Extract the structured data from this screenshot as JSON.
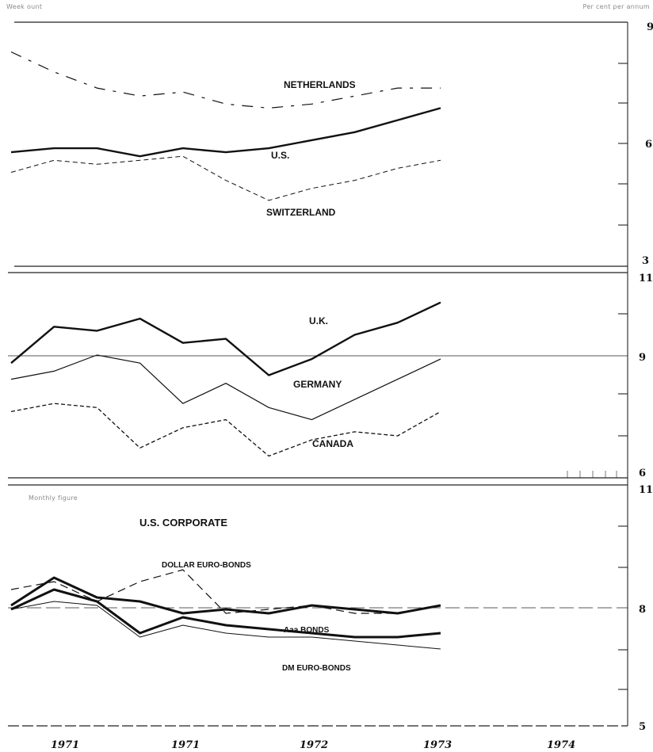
{
  "header": {
    "left_note": "Week   ount",
    "right_note": "Per cent per annum",
    "panel3_note": "Monthly figure"
  },
  "chart_data": [
    {
      "type": "line",
      "title": "",
      "ylim": [
        3,
        9
      ],
      "yticks": [
        "9",
        "6",
        "3"
      ],
      "x": [
        1970.9,
        1971.1,
        1971.3,
        1971.5,
        1971.7,
        1971.9,
        1972.1,
        1972.3,
        1972.5,
        1972.7,
        1972.9
      ],
      "series": [
        {
          "name": "NETHERLANDS",
          "values": [
            8.3,
            7.8,
            7.4,
            7.2,
            7.3,
            7.0,
            6.9,
            7.0,
            7.2,
            7.4,
            7.4
          ]
        },
        {
          "name": "U.S.",
          "values": [
            5.8,
            5.9,
            5.9,
            5.7,
            5.9,
            5.8,
            5.9,
            6.1,
            6.3,
            6.6,
            6.9
          ]
        },
        {
          "name": "SWITZERLAND",
          "values": [
            5.3,
            5.6,
            5.5,
            5.6,
            5.7,
            5.1,
            4.6,
            4.9,
            5.1,
            5.4,
            5.6
          ]
        }
      ]
    },
    {
      "type": "line",
      "title": "",
      "ylim": [
        6,
        11
      ],
      "yticks": [
        "11",
        "9",
        "6"
      ],
      "x": [
        1970.9,
        1971.1,
        1971.3,
        1971.5,
        1971.7,
        1971.9,
        1972.1,
        1972.3,
        1972.5,
        1972.7,
        1972.9
      ],
      "series": [
        {
          "name": "U.K.",
          "values": [
            8.8,
            9.7,
            9.6,
            9.9,
            9.3,
            9.4,
            8.5,
            8.9,
            9.5,
            9.8,
            10.3
          ]
        },
        {
          "name": "GERMANY",
          "values": [
            8.4,
            8.6,
            9.0,
            8.8,
            7.8,
            8.3,
            7.7,
            7.4,
            7.9,
            8.4,
            8.9
          ]
        },
        {
          "name": "CANADA",
          "values": [
            7.6,
            7.8,
            7.7,
            6.7,
            7.2,
            7.4,
            6.5,
            6.9,
            7.1,
            7.0,
            7.6
          ]
        }
      ]
    },
    {
      "type": "line",
      "title": "",
      "ylim": [
        5,
        11
      ],
      "yticks": [
        "11",
        "8",
        "5"
      ],
      "x": [
        1970.9,
        1971.1,
        1971.3,
        1971.5,
        1971.7,
        1971.9,
        1972.1,
        1972.3,
        1972.5,
        1972.7,
        1972.9
      ],
      "series": [
        {
          "name": "U.S. CORPORATE",
          "values": [
            8.0,
            8.7,
            8.2,
            8.1,
            7.8,
            7.9,
            7.8,
            8.0,
            7.9,
            7.8,
            8.0
          ]
        },
        {
          "name": "DOLLAR EURO-BONDS",
          "values": [
            8.4,
            8.6,
            8.1,
            8.6,
            8.9,
            7.8,
            7.9,
            8.0,
            7.8,
            7.8,
            8.0
          ]
        },
        {
          "name": "Aaa BONDS",
          "values": [
            7.9,
            8.1,
            8.0,
            7.2,
            7.5,
            7.3,
            7.2,
            7.2,
            7.1,
            7.0,
            6.9
          ]
        },
        {
          "name": "DM EURO-BONDS",
          "values": [
            7.9,
            8.4,
            8.1,
            7.3,
            7.7,
            7.5,
            7.4,
            7.3,
            7.2,
            7.2,
            7.3
          ]
        }
      ]
    }
  ],
  "x_axis_labels": [
    "1971",
    "1971",
    "1972",
    "1973",
    "1974"
  ]
}
